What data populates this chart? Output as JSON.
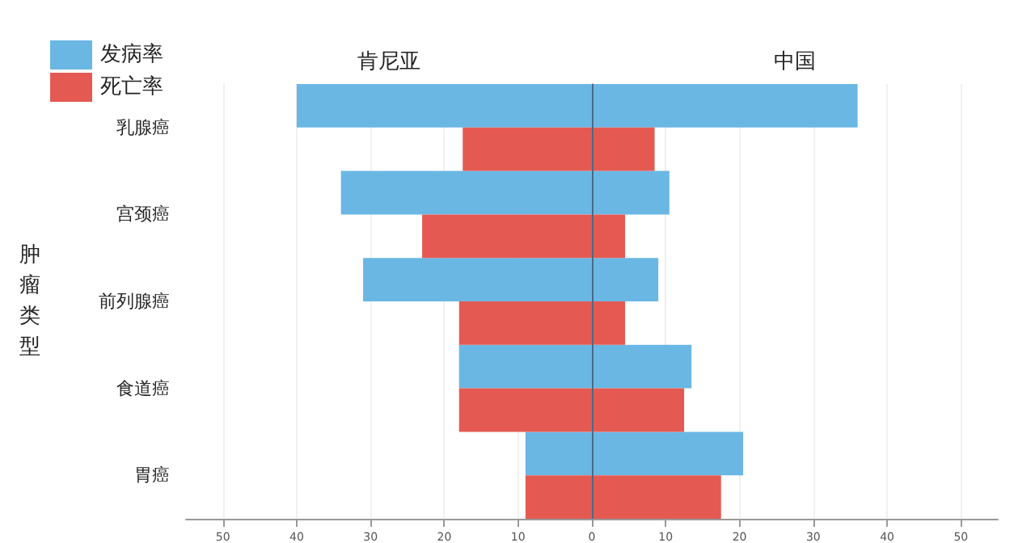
{
  "chart_data": {
    "type": "bar",
    "orientation": "horizontal",
    "ylabel": "肿瘤类型",
    "annotations": [
      "肯尼亚",
      "中国"
    ],
    "categories": [
      "乳腺癌",
      "宫颈癌",
      "前列腺癌",
      "食道癌",
      "胃癌"
    ],
    "series": [
      {
        "name": "发病率",
        "color": "#6ab7e4",
        "base": [
          -40,
          -34,
          -31,
          -18,
          -9
        ],
        "values": [
          76,
          44.5,
          40,
          31.5,
          29.5
        ]
      },
      {
        "name": "死亡率",
        "color": "#e45a52",
        "base": [
          -17.5,
          -23,
          -18,
          -18,
          -9
        ],
        "values": [
          26,
          27.5,
          22.5,
          30.5,
          26.5
        ]
      }
    ],
    "xlim": [
      -55,
      55
    ],
    "xticks": [
      {
        "value": -50,
        "label": "50"
      },
      {
        "value": -40,
        "label": "40"
      },
      {
        "value": -30,
        "label": "30"
      },
      {
        "value": -20,
        "label": "20"
      },
      {
        "value": -10,
        "label": "10"
      },
      0,
      10,
      20,
      30,
      40,
      50
    ],
    "ref_lines": [
      {
        "axis": "x",
        "value": 0,
        "color": "#4a6a85"
      }
    ],
    "grid": "x",
    "legend": "top left"
  }
}
